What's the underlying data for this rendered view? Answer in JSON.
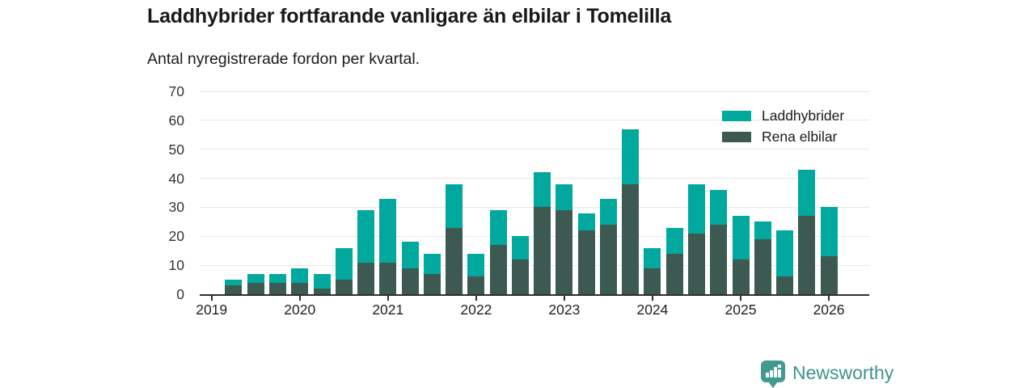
{
  "header": {
    "title": "Laddhybrider fortfarande vanligare än elbilar i Tomelilla",
    "subtitle": "Antal nyregistrerade fordon per kvartal."
  },
  "chart_data": {
    "type": "bar",
    "stacked": true,
    "title": "Laddhybrider fortfarande vanligare än elbilar i Tomelilla",
    "subtitle": "Antal nyregistrerade fordon per kvartal.",
    "categories": [
      "2019 Q2",
      "2019 Q3",
      "2019 Q4",
      "2020 Q1",
      "2020 Q2",
      "2020 Q3",
      "2020 Q4",
      "2021 Q1",
      "2021 Q2",
      "2021 Q3",
      "2021 Q4",
      "2022 Q1",
      "2022 Q2",
      "2022 Q3",
      "2022 Q4",
      "2023 Q1",
      "2023 Q2",
      "2023 Q3",
      "2023 Q4",
      "2024 Q1",
      "2024 Q2",
      "2024 Q3",
      "2024 Q4",
      "2025 Q1",
      "2025 Q2",
      "2025 Q3",
      "2025 Q4",
      "2026 Q1"
    ],
    "series": [
      {
        "name": "Rena elbilar",
        "color": "#3c5a52",
        "values": [
          3,
          4,
          4,
          4,
          2,
          5,
          11,
          11,
          9,
          7,
          23,
          6,
          17,
          12,
          30,
          29,
          22,
          24,
          38,
          9,
          14,
          21,
          24,
          12,
          19,
          6,
          27,
          13
        ]
      },
      {
        "name": "Laddhybrider",
        "color": "#00a89d",
        "values": [
          2,
          3,
          3,
          5,
          5,
          11,
          18,
          22,
          9,
          7,
          15,
          8,
          12,
          8,
          12,
          9,
          6,
          9,
          19,
          7,
          9,
          17,
          12,
          15,
          6,
          16,
          16,
          17
        ]
      }
    ],
    "totals": [
      5,
      7,
      7,
      9,
      7,
      16,
      29,
      33,
      18,
      14,
      38,
      14,
      29,
      20,
      42,
      38,
      28,
      33,
      57,
      16,
      23,
      38,
      36,
      27,
      25,
      22,
      43,
      30
    ],
    "xlabel": "",
    "ylabel": "",
    "ylim": [
      0,
      70
    ],
    "yticks": [
      0,
      10,
      20,
      30,
      40,
      50,
      60,
      70
    ],
    "xticks": [
      "2019",
      "2020",
      "2021",
      "2022",
      "2023",
      "2024",
      "2025",
      "2026"
    ],
    "grid": true,
    "legend_position": "top-right",
    "legend_order": [
      "Laddhybrider",
      "Rena elbilar"
    ]
  },
  "logo": {
    "text": "Newsworthy",
    "icon": "newsworthy-speech-bubble-bar-chart-icon",
    "icon_color": "#419a92",
    "text_color": "#41938a"
  }
}
